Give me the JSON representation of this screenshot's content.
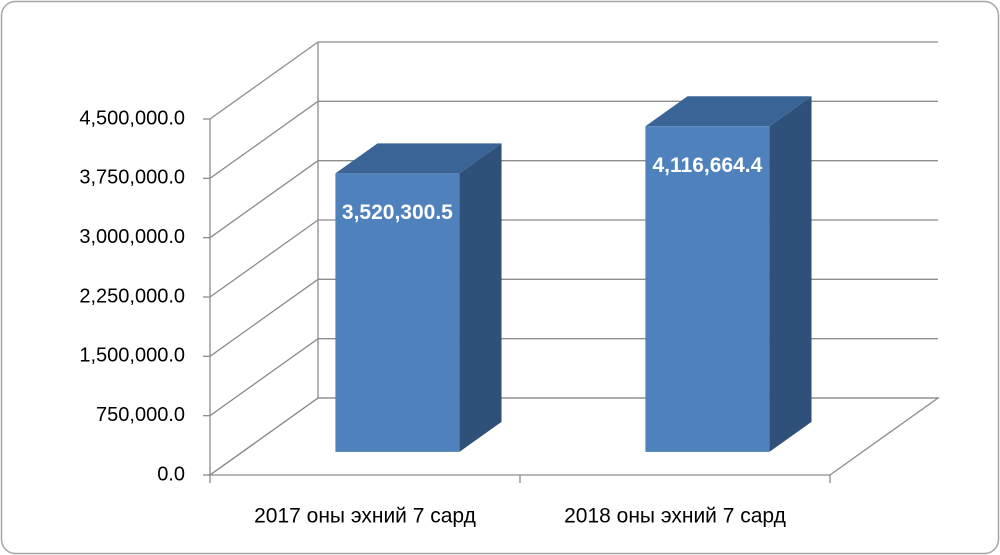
{
  "chart_data": {
    "type": "bar3d",
    "categories": [
      "2017 оны эхний 7 сард",
      "2018 оны эхний 7 сард"
    ],
    "values": [
      3520300.5,
      4116664.4
    ],
    "value_labels": [
      "3,520,300.5",
      "4,116,664.4"
    ],
    "color": "#4f81bd",
    "ylim": [
      0,
      4500000
    ],
    "yticks": [
      {
        "value": 0,
        "label": "0.0"
      },
      {
        "value": 750000,
        "label": "750,000.0"
      },
      {
        "value": 1500000,
        "label": "1,500,000.0"
      },
      {
        "value": 2250000,
        "label": "2,250,000.0"
      },
      {
        "value": 3000000,
        "label": "3,000,000.0"
      },
      {
        "value": 3750000,
        "label": "3,750,000.0"
      },
      {
        "value": 4500000,
        "label": "4,500,000.0"
      }
    ],
    "grid": true
  }
}
